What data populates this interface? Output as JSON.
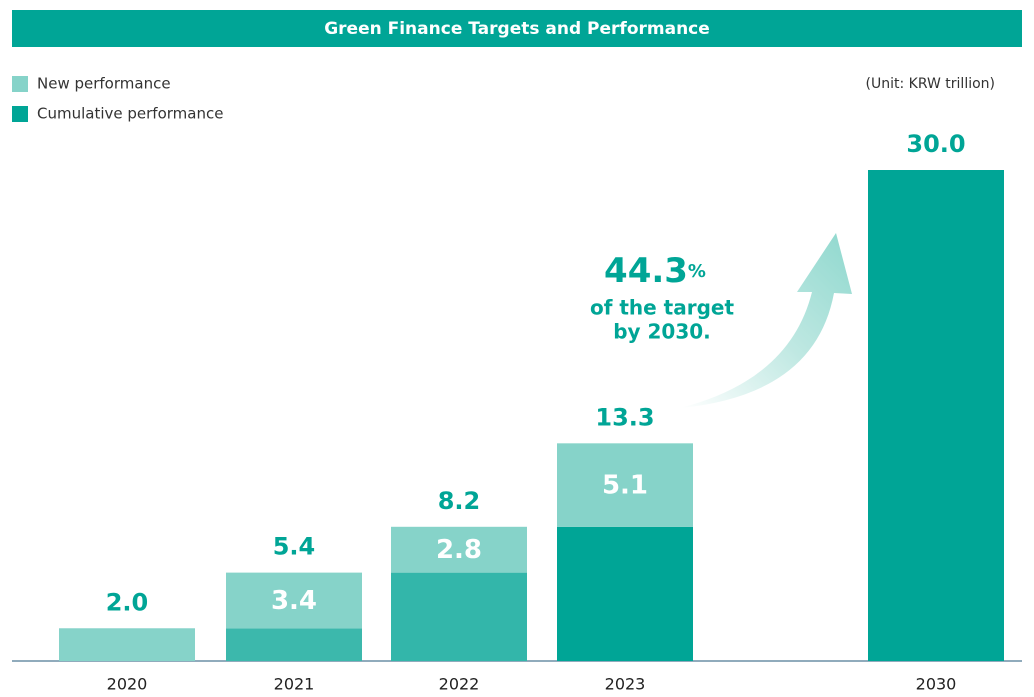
{
  "chart_data": {
    "type": "stacked-bar",
    "title": "Green Finance Targets and Performance",
    "unit_note": "(Unit: KRW trillion)",
    "categories": [
      "2020",
      "2021",
      "2022",
      "2023",
      "2030"
    ],
    "series": [
      {
        "name": "Cumulative performance",
        "color": "#00a596",
        "colors": [
          "#00a596",
          "#3cb8ac",
          "#33b6aa",
          "#00a596",
          "#00a596"
        ],
        "values": [
          null,
          2.0,
          5.4,
          8.2,
          30.0
        ]
      },
      {
        "name": "New performance",
        "color": "#86d3c9",
        "values": [
          2.0,
          3.4,
          2.8,
          5.1,
          null
        ],
        "value_labels": [
          null,
          "3.4",
          "2.8",
          "5.1",
          null
        ]
      }
    ],
    "totals": [
      2.0,
      5.4,
      8.2,
      13.3,
      30.0
    ],
    "total_labels": [
      "2.0",
      "5.4",
      "8.2",
      "13.3",
      "30.0"
    ],
    "annotation": {
      "value": "44.3",
      "unit": "%",
      "lines": [
        "of the target",
        "by 2030."
      ]
    },
    "ylim": [
      0,
      30
    ],
    "legend": "top-left"
  }
}
